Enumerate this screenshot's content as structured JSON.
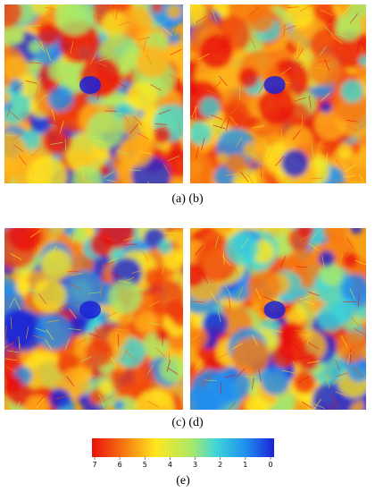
{
  "captions": [
    "(a) (b)",
    "(c) (d)"
  ],
  "colorbar": {
    "ticks": [
      7,
      6,
      5,
      4,
      3,
      2,
      1,
      0
    ],
    "label": "(e)"
  }
}
